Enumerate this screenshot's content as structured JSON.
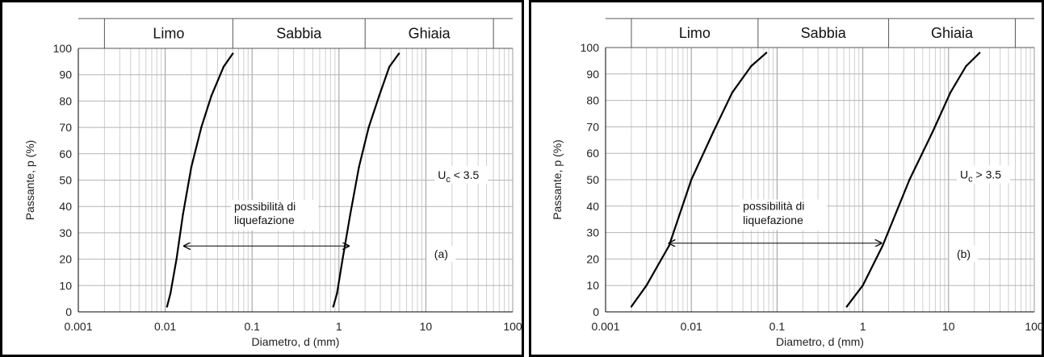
{
  "chart_data": [
    {
      "type": "line",
      "panel_label": "(a)",
      "xscale": "log",
      "xlim": [
        0.001,
        100
      ],
      "ylim": [
        0,
        100
      ],
      "xticks": [
        "0.001",
        "0.01",
        "0.1",
        "1",
        "10",
        "100"
      ],
      "yticks": [
        "0",
        "10",
        "20",
        "30",
        "40",
        "50",
        "60",
        "70",
        "80",
        "90",
        "100"
      ],
      "xlabel": "Diametro, d (mm)",
      "ylabel": "Passante, p (%)",
      "grid": true,
      "bands": [
        {
          "label": "Limo",
          "from": 0.002,
          "to": 0.06
        },
        {
          "label": "Sabbia",
          "from": 0.06,
          "to": 2
        },
        {
          "label": "Ghiaia",
          "from": 2,
          "to": 60
        }
      ],
      "series": [
        {
          "x": [
            0.0105,
            0.0115,
            0.0135,
            0.016,
            0.02,
            0.026,
            0.034,
            0.047,
            0.06
          ],
          "y": [
            2,
            7,
            20,
            37,
            55,
            70,
            82,
            93,
            98
          ]
        },
        {
          "x": [
            0.86,
            0.95,
            1.1,
            1.35,
            1.7,
            2.2,
            2.9,
            3.8,
            4.9
          ],
          "y": [
            2,
            7,
            20,
            37,
            55,
            70,
            82,
            93,
            98
          ]
        }
      ],
      "arrow": {
        "x1": 0.0165,
        "x2": 1.3,
        "y": 25
      },
      "annotations": {
        "zone_line1": "possibilità di",
        "zone_line2": "liquefazione",
        "uc_main": "U",
        "uc_sub": "c",
        "uc_rest": " < 3.5",
        "label": "(a)"
      }
    },
    {
      "type": "line",
      "panel_label": "(b)",
      "xscale": "log",
      "xlim": [
        0.001,
        100
      ],
      "ylim": [
        0,
        100
      ],
      "xticks": [
        "0.001",
        "0.01",
        "0.1",
        "1",
        "10",
        "100"
      ],
      "yticks": [
        "0",
        "10",
        "20",
        "30",
        "40",
        "50",
        "60",
        "70",
        "80",
        "90",
        "100"
      ],
      "xlabel": "Diametro, d (mm)",
      "ylabel": "Passante, p (%)",
      "grid": true,
      "bands": [
        {
          "label": "Limo",
          "from": 0.002,
          "to": 0.06
        },
        {
          "label": "Sabbia",
          "from": 0.06,
          "to": 2
        },
        {
          "label": "Ghiaia",
          "from": 2,
          "to": 60
        }
      ],
      "series": [
        {
          "x": [
            0.002,
            0.003,
            0.0055,
            0.01,
            0.018,
            0.03,
            0.05,
            0.075
          ],
          "y": [
            2,
            10,
            25,
            50,
            68,
            83,
            93,
            98
          ]
        },
        {
          "x": [
            0.65,
            1.0,
            1.7,
            3.5,
            6.5,
            10.5,
            16,
            23
          ],
          "y": [
            2,
            10,
            25,
            50,
            68,
            83,
            93,
            98
          ]
        }
      ],
      "arrow": {
        "x1": 0.0055,
        "x2": 1.65,
        "y": 26
      },
      "annotations": {
        "zone_line1": "possibilità di",
        "zone_line2": "liquefazione",
        "uc_main": "U",
        "uc_sub": "c",
        "uc_rest": " > 3.5",
        "label": "(b)"
      }
    }
  ]
}
